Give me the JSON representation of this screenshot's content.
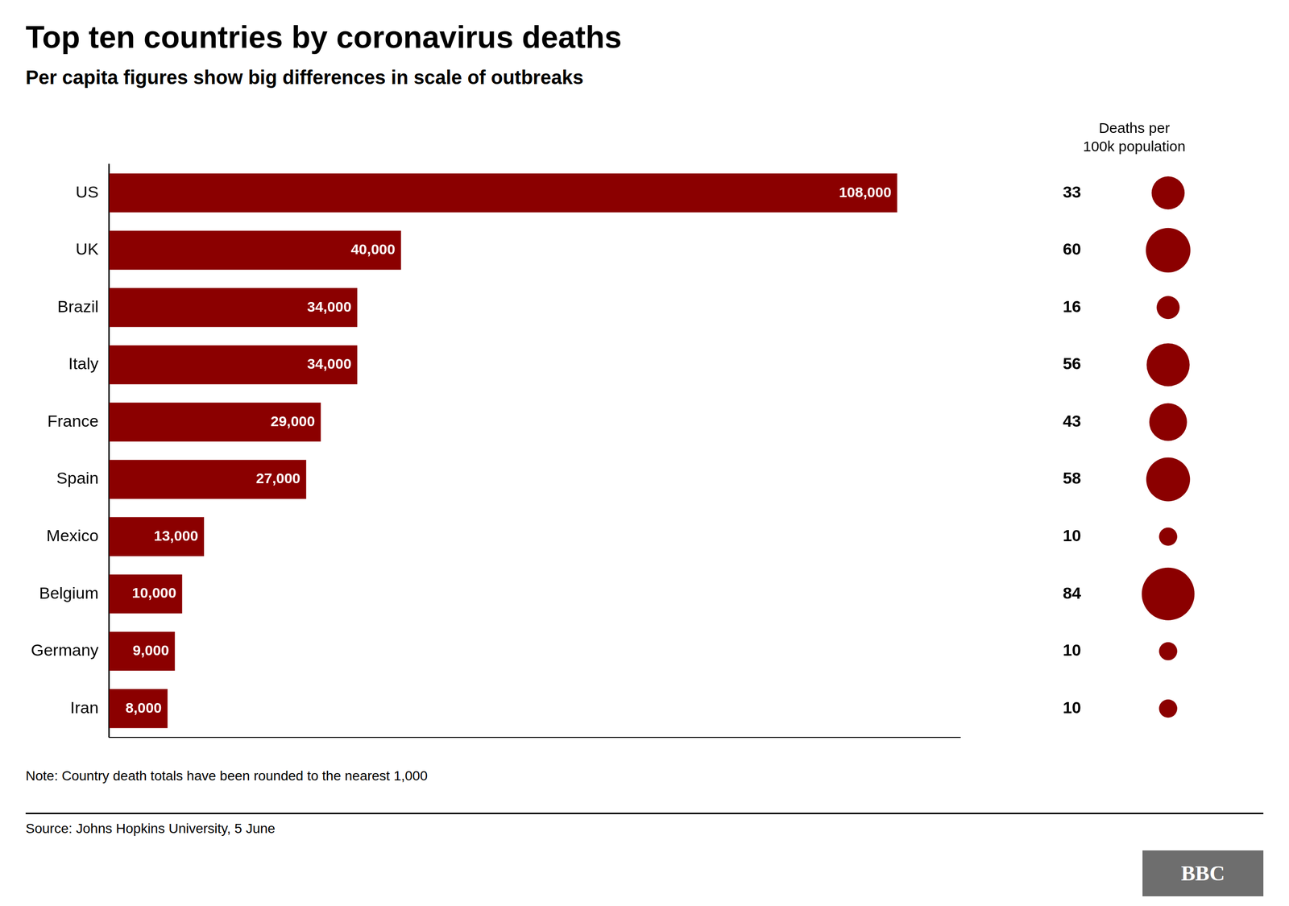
{
  "chart_data": {
    "type": "bar",
    "orientation": "horizontal",
    "title": "Top ten countries by coronavirus deaths",
    "subtitle": "Per capita figures show big differences in scale of outbreaks",
    "note": "Note: Country death totals have been rounded to the nearest 1,000",
    "source": "Source: Johns Hopkins University, 5 June",
    "logo": {
      "text": "BBC",
      "color": "#6e6e6e"
    },
    "categories": [
      "US",
      "UK",
      "Brazil",
      "Italy",
      "France",
      "Spain",
      "Mexico",
      "Belgium",
      "Germany",
      "Iran"
    ],
    "values": [
      108000,
      40000,
      34000,
      34000,
      29000,
      27000,
      13000,
      10000,
      9000,
      8000
    ],
    "value_labels": [
      "108,000",
      "40,000",
      "34,000",
      "34,000",
      "29,000",
      "27,000",
      "13,000",
      "10,000",
      "9,000",
      "8,000"
    ],
    "data_labels": true,
    "color": "#8B0000",
    "xlim": [
      0,
      116640
    ],
    "xticks": [],
    "tick_labels": "y",
    "grid": false,
    "legend": false,
    "per_100k": {
      "title": "Deaths per\n100k population",
      "values": [
        33,
        60,
        16,
        56,
        43,
        58,
        10,
        84,
        10,
        10
      ],
      "color": "#8B0000"
    }
  }
}
